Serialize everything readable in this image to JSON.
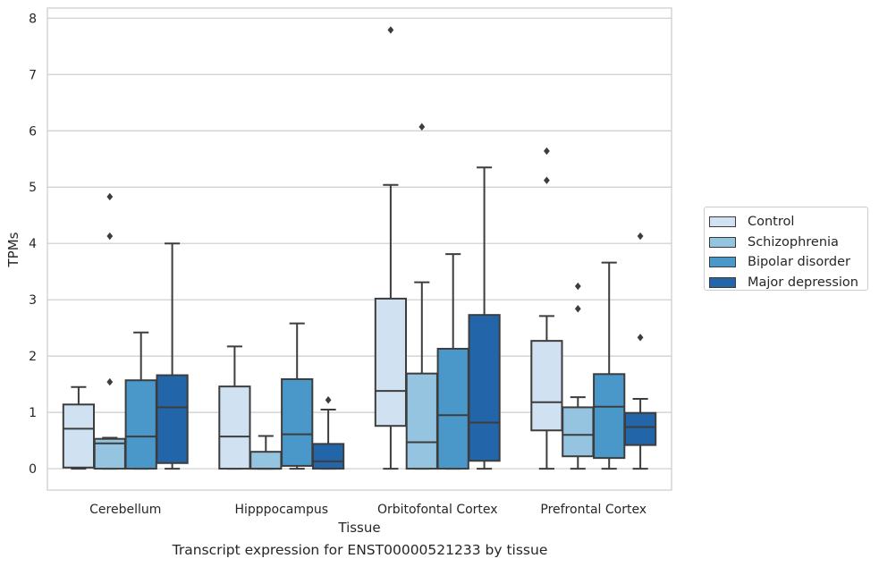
{
  "chart_data": {
    "type": "box",
    "xlabel": "Tissue",
    "ylabel": "TPMs",
    "caption": "Transcript expression for ENST00000521233 by tissue",
    "ylim": [
      -0.38,
      8.18
    ],
    "yticks": [
      0,
      1,
      2,
      3,
      4,
      5,
      6,
      7,
      8
    ],
    "grid": "horizontal",
    "legend_position": "right",
    "categories": [
      "Cerebellum",
      "Hipppocampus",
      "Orbitofontal Cortex",
      "Prefrontal Cortex"
    ],
    "series": [
      {
        "name": "Control",
        "color": "#d0e1f2",
        "boxes": [
          {
            "whislo": 0.0,
            "q1": 0.02,
            "med": 0.71,
            "q3": 1.14,
            "whishi": 1.45,
            "fliers": []
          },
          {
            "whislo": 0.0,
            "q1": 0.0,
            "med": 0.57,
            "q3": 1.46,
            "whishi": 2.17,
            "fliers": []
          },
          {
            "whislo": 0.0,
            "q1": 0.76,
            "med": 1.38,
            "q3": 3.02,
            "whishi": 5.04,
            "fliers": [
              7.79
            ]
          },
          {
            "whislo": 0.0,
            "q1": 0.68,
            "med": 1.18,
            "q3": 2.27,
            "whishi": 2.71,
            "fliers": [
              5.64,
              5.12
            ]
          }
        ]
      },
      {
        "name": "Schizophrenia",
        "color": "#94c4df",
        "boxes": [
          {
            "whislo": 0.0,
            "q1": 0.0,
            "med": 0.45,
            "q3": 0.53,
            "whishi": 0.55,
            "fliers": [
              4.83,
              4.13,
              1.54
            ]
          },
          {
            "whislo": 0.0,
            "q1": 0.0,
            "med": 0.0,
            "q3": 0.3,
            "whishi": 0.58,
            "fliers": []
          },
          {
            "whislo": 0.0,
            "q1": 0.0,
            "med": 0.47,
            "q3": 1.69,
            "whishi": 3.31,
            "fliers": [
              6.07
            ]
          },
          {
            "whislo": 0.0,
            "q1": 0.22,
            "med": 0.6,
            "q3": 1.09,
            "whishi": 1.27,
            "fliers": [
              3.24,
              2.84
            ]
          }
        ]
      },
      {
        "name": "Bipolar disorder",
        "color": "#4a98c9",
        "boxes": [
          {
            "whislo": 0.0,
            "q1": 0.0,
            "med": 0.57,
            "q3": 1.57,
            "whishi": 2.42,
            "fliers": []
          },
          {
            "whislo": 0.0,
            "q1": 0.05,
            "med": 0.61,
            "q3": 1.59,
            "whishi": 2.58,
            "fliers": []
          },
          {
            "whislo": 0.0,
            "q1": 0.0,
            "med": 0.95,
            "q3": 2.13,
            "whishi": 3.81,
            "fliers": []
          },
          {
            "whislo": 0.0,
            "q1": 0.19,
            "med": 1.1,
            "q3": 1.68,
            "whishi": 3.66,
            "fliers": []
          }
        ]
      },
      {
        "name": "Major depression",
        "color": "#2265a9",
        "boxes": [
          {
            "whislo": 0.0,
            "q1": 0.1,
            "med": 1.09,
            "q3": 1.66,
            "whishi": 4.0,
            "fliers": []
          },
          {
            "whislo": 0.0,
            "q1": 0.0,
            "med": 0.13,
            "q3": 0.44,
            "whishi": 1.05,
            "fliers": [
              1.22
            ]
          },
          {
            "whislo": 0.0,
            "q1": 0.14,
            "med": 0.82,
            "q3": 2.73,
            "whishi": 5.35,
            "fliers": []
          },
          {
            "whislo": 0.0,
            "q1": 0.42,
            "med": 0.74,
            "q3": 0.99,
            "whishi": 1.24,
            "fliers": [
              4.13,
              2.33
            ]
          }
        ]
      }
    ]
  }
}
